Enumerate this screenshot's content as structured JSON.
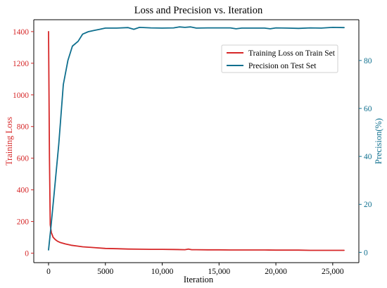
{
  "chart_data": {
    "type": "line",
    "title": "Loss and Precision vs. Iteration",
    "xlabel": "Iteration",
    "ylabel_left": "Training Loss",
    "ylabel_right": "Precision(%)",
    "xlim": [
      -1300,
      27300
    ],
    "ylim_left": [
      -60,
      1475
    ],
    "ylim_right": [
      -4.3,
      97
    ],
    "x_ticks": [
      0,
      5000,
      10000,
      15000,
      20000,
      25000
    ],
    "x_tick_labels": [
      "0",
      "5000",
      "10,000",
      "15,000",
      "20,000",
      "25,000"
    ],
    "y_left_ticks": [
      0,
      200,
      400,
      600,
      800,
      1000,
      1200,
      1400
    ],
    "y_right_ticks": [
      0,
      20,
      40,
      60,
      80
    ],
    "grid": false,
    "legend_position": "top-right",
    "colors": {
      "loss": "#d62728",
      "precision": "#0e6f8e",
      "left_axis": "#d62728",
      "right_axis": "#0e6f8e"
    },
    "series": [
      {
        "name": "Training Loss on Train Set",
        "axis": "left",
        "color": "#d62728",
        "x": [
          0,
          80,
          150,
          250,
          400,
          600,
          800,
          1000,
          1500,
          2000,
          2500,
          3000,
          4000,
          5000,
          6000,
          7000,
          8000,
          9000,
          10000,
          11000,
          12000,
          12300,
          12600,
          13000,
          14000,
          15000,
          16000,
          17000,
          18000,
          19000,
          20000,
          21000,
          22000,
          23000,
          24000,
          25000,
          26000
        ],
        "values": [
          1400,
          600,
          180,
          130,
          100,
          85,
          75,
          68,
          58,
          50,
          45,
          40,
          35,
          30,
          28,
          26,
          25,
          24,
          24,
          23,
          22,
          26,
          22,
          22,
          21,
          21,
          20,
          20,
          20,
          20,
          19,
          19,
          19,
          18,
          18,
          18,
          18
        ]
      },
      {
        "name": "Precision on Test Set",
        "axis": "right",
        "color": "#0e6f8e",
        "x": [
          0,
          200,
          500,
          900,
          1300,
          1700,
          2100,
          2600,
          3000,
          3500,
          4000,
          4500,
          5000,
          6000,
          7000,
          7500,
          8000,
          9000,
          10000,
          11000,
          11500,
          12000,
          12500,
          13000,
          14000,
          15000,
          16000,
          16500,
          17000,
          18000,
          19000,
          19500,
          20000,
          21000,
          22000,
          23000,
          24000,
          25000,
          26000
        ],
        "values": [
          1,
          10,
          25,
          45,
          70,
          80,
          86,
          88,
          91,
          92,
          92.5,
          93,
          93.5,
          93.5,
          93.7,
          93,
          93.8,
          93.6,
          93.5,
          93.6,
          94,
          93.8,
          94,
          93.5,
          93.6,
          93.6,
          93.6,
          93.2,
          93.5,
          93.5,
          93.5,
          93.2,
          93.6,
          93.5,
          93.4,
          93.6,
          93.5,
          93.8,
          93.7
        ]
      }
    ]
  }
}
